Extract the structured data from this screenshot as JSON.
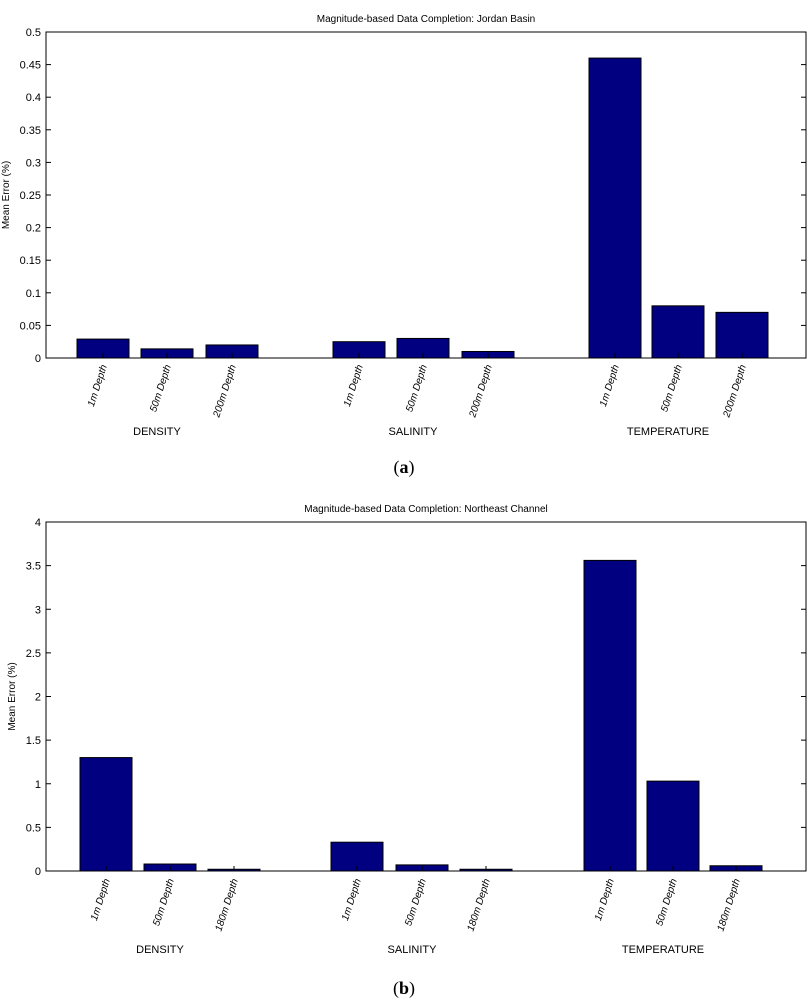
{
  "panels": [
    {
      "caption_open": "(",
      "caption_letter": "a",
      "caption_close": ")"
    },
    {
      "caption_open": "(",
      "caption_letter": "b",
      "caption_close": ")"
    }
  ],
  "chart_data": [
    {
      "type": "bar",
      "title": "Magnitude-based Data Completion: Jordan Basin",
      "xlabel": "",
      "ylabel": "Mean Error (%)",
      "ylim": [
        0,
        0.5
      ],
      "yticks": [
        0,
        0.05,
        0.1,
        0.15,
        0.2,
        0.25,
        0.3,
        0.35,
        0.4,
        0.45,
        0.5
      ],
      "ytick_labels": [
        "0",
        "0.05",
        "0.1",
        "0.15",
        "0.2",
        "0.25",
        "0.3",
        "0.35",
        "0.4",
        "0.45",
        "0.5"
      ],
      "grid": false,
      "bar_color": "#000080",
      "groups": [
        {
          "label": "DENSITY",
          "categories": [
            "1m Depth",
            "50m Depth",
            "200m Depth"
          ],
          "values": [
            0.029,
            0.014,
            0.02
          ]
        },
        {
          "label": "SALINITY",
          "categories": [
            "1m Depth",
            "50m Depth",
            "200m Depth"
          ],
          "values": [
            0.025,
            0.03,
            0.01
          ]
        },
        {
          "label": "TEMPERATURE",
          "categories": [
            "1m Depth",
            "50m Depth",
            "200m Depth"
          ],
          "values": [
            0.46,
            0.08,
            0.07
          ]
        }
      ]
    },
    {
      "type": "bar",
      "title": "Magnitude-based Data Completion: Northeast Channel",
      "xlabel": "",
      "ylabel": "Mean Error (%)",
      "ylim": [
        0,
        4
      ],
      "yticks": [
        0,
        0.5,
        1,
        1.5,
        2,
        2.5,
        3,
        3.5,
        4
      ],
      "ytick_labels": [
        "0",
        "0.5",
        "1",
        "1.5",
        "2",
        "2.5",
        "3",
        "3.5",
        "4"
      ],
      "grid": false,
      "bar_color": "#000080",
      "groups": [
        {
          "label": "DENSITY",
          "categories": [
            "1m Depth",
            "50m Depth",
            "180m Depth"
          ],
          "values": [
            1.3,
            0.08,
            0.02
          ]
        },
        {
          "label": "SALINITY",
          "categories": [
            "1m Depth",
            "50m Depth",
            "180m Depth"
          ],
          "values": [
            0.33,
            0.07,
            0.02
          ]
        },
        {
          "label": "TEMPERATURE",
          "categories": [
            "1m Depth",
            "50m Depth",
            "180m Depth"
          ],
          "values": [
            3.56,
            1.03,
            0.06
          ]
        }
      ]
    }
  ]
}
